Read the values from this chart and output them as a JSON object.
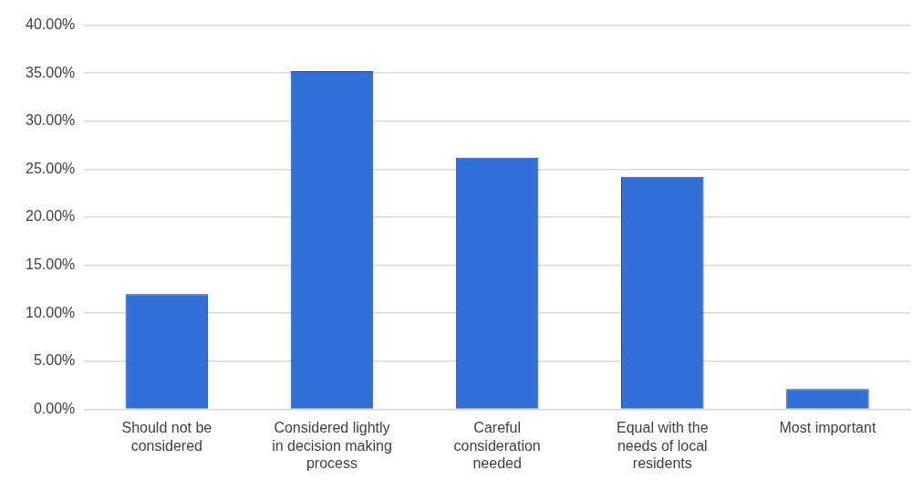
{
  "chart_data": {
    "type": "bar",
    "categories": [
      "Should not be considered",
      "Considered lightly in decision making process",
      "Careful consideration needed",
      "Equal with the needs of local residents",
      "Most important"
    ],
    "values": [
      12.0,
      35.2,
      26.2,
      24.2,
      2.1
    ],
    "color": "#3170d9",
    "ylim": [
      0,
      40
    ],
    "yticks": [
      {
        "value": 0,
        "label": "0.00%"
      },
      {
        "value": 5,
        "label": "5.00%"
      },
      {
        "value": 10,
        "label": "10.00%"
      },
      {
        "value": 15,
        "label": "15.00%"
      },
      {
        "value": 20,
        "label": "20.00%"
      },
      {
        "value": 25,
        "label": "25.00%"
      },
      {
        "value": 30,
        "label": "30.00%"
      },
      {
        "value": 35,
        "label": "35.00%"
      },
      {
        "value": 40,
        "label": "40.00%"
      }
    ],
    "grid": "y",
    "legend": false
  }
}
